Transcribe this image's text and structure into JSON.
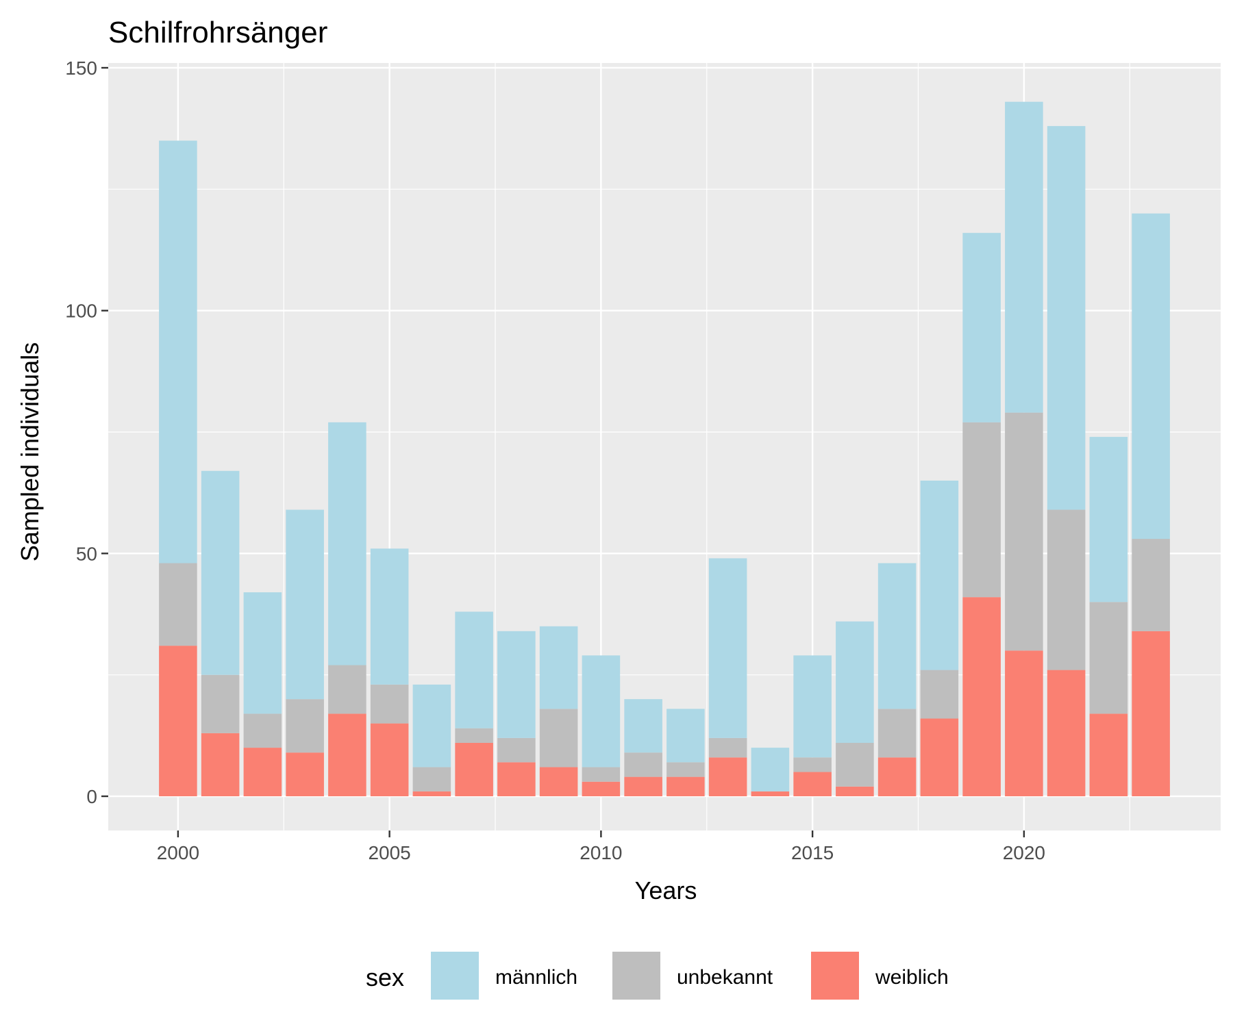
{
  "chart_data": {
    "type": "bar",
    "stacked": true,
    "title": "Schilfrohrsänger",
    "xlabel": "Years",
    "ylabel": "Sampled individuals",
    "ylim": [
      -7.5,
      150
    ],
    "xlim": [
      1998.35,
      2024.65
    ],
    "yticks": [
      0,
      50,
      100,
      150
    ],
    "xticks": [
      2000,
      2005,
      2010,
      2015,
      2020
    ],
    "grid": true,
    "legend_position": "bottom",
    "legend_title": "sex",
    "categories": [
      2000,
      2001,
      2002,
      2003,
      2004,
      2005,
      2006,
      2007,
      2008,
      2009,
      2010,
      2011,
      2012,
      2013,
      2014,
      2015,
      2016,
      2017,
      2018,
      2019,
      2020,
      2021,
      2022,
      2023
    ],
    "series": [
      {
        "name": "weiblich",
        "color": "#FA8072",
        "values": [
          31,
          13,
          10,
          9,
          17,
          15,
          1,
          11,
          7,
          6,
          3,
          4,
          4,
          8,
          1,
          5,
          2,
          8,
          16,
          41,
          30,
          26,
          17,
          34
        ]
      },
      {
        "name": "unbekannt",
        "color": "#BEBEBE",
        "values": [
          17,
          12,
          7,
          11,
          10,
          8,
          5,
          3,
          5,
          12,
          3,
          5,
          3,
          4,
          0,
          3,
          9,
          10,
          10,
          36,
          49,
          33,
          23,
          19
        ]
      },
      {
        "name": "männlich",
        "color": "#ADD8E6",
        "values": [
          87,
          42,
          25,
          39,
          50,
          28,
          17,
          24,
          22,
          17,
          23,
          11,
          11,
          37,
          9,
          21,
          25,
          30,
          39,
          39,
          64,
          79,
          34,
          67
        ]
      }
    ],
    "legend_order": [
      "männlich",
      "unbekannt",
      "weiblich"
    ]
  }
}
